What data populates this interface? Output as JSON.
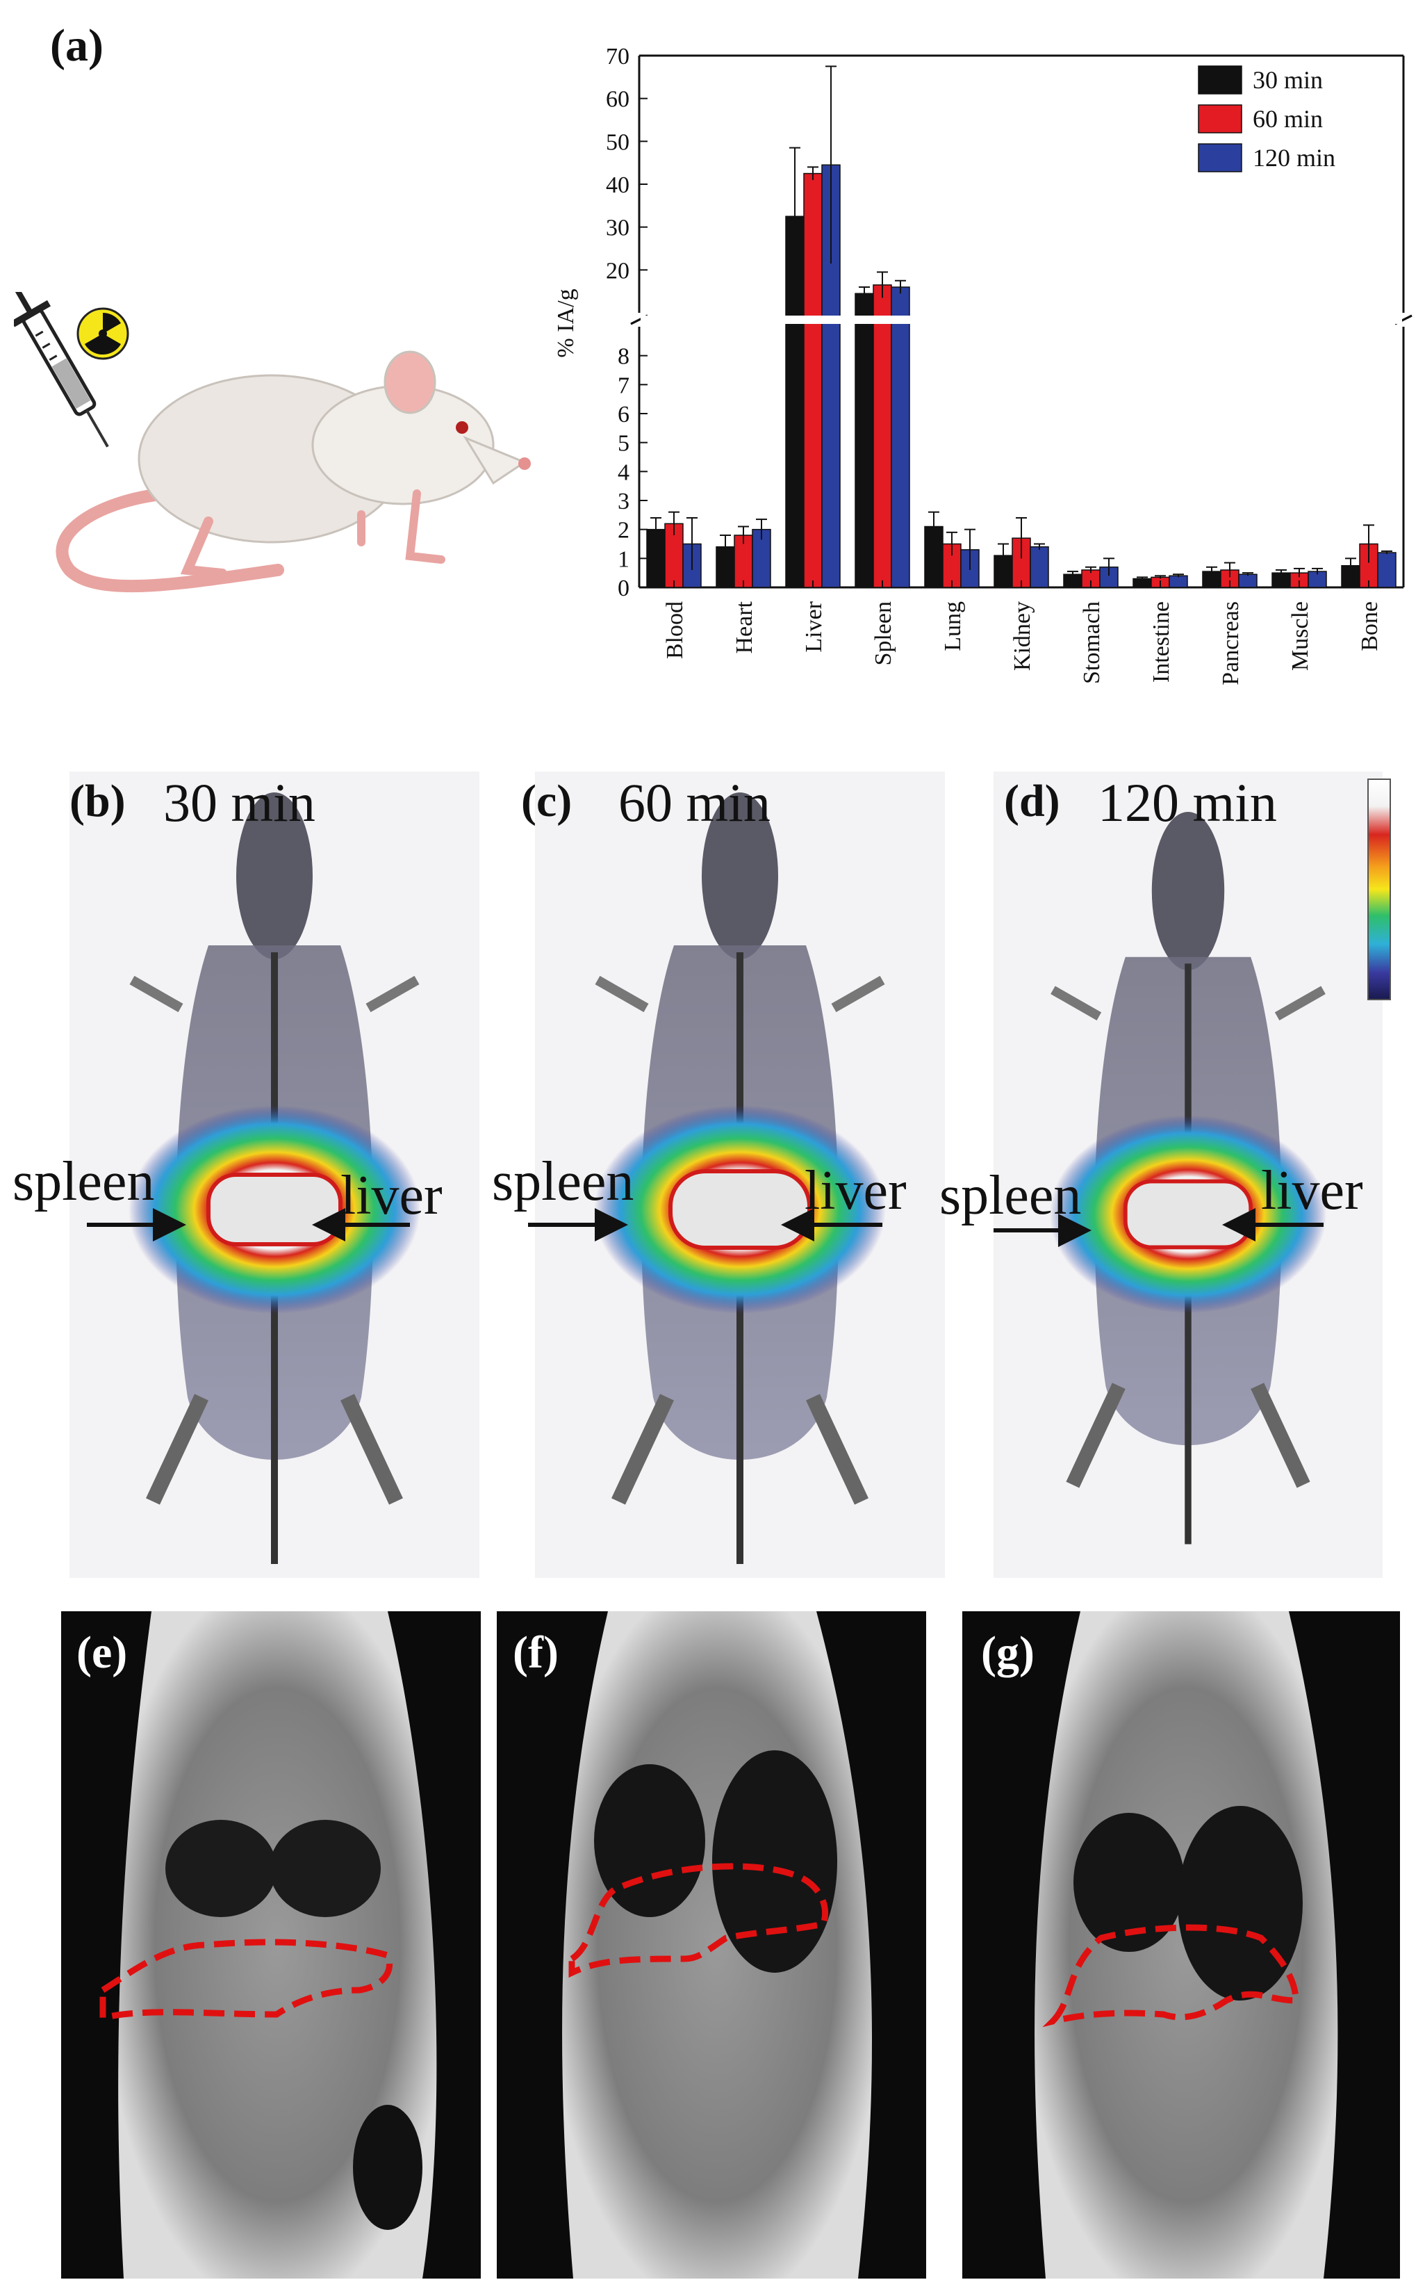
{
  "panels": {
    "a": {
      "label": "(a)"
    },
    "b": {
      "label": "(b)",
      "time": "30 min"
    },
    "c": {
      "label": "(c)",
      "time": "60 min"
    },
    "d": {
      "label": "(d)",
      "time": "120 min"
    },
    "e": {
      "label": "(e)"
    },
    "f": {
      "label": "(f)"
    },
    "g": {
      "label": "(g)"
    }
  },
  "annotations": {
    "spleen": "spleen",
    "liver": "liver"
  },
  "chart_data": {
    "type": "bar",
    "title": "",
    "xlabel": "",
    "ylabel": "% IA/g",
    "categories": [
      "Blood",
      "Heart",
      "Liver",
      "Spleen",
      "Lung",
      "Kidney",
      "Stomach",
      "Intestine",
      "Pancreas",
      "Muscle",
      "Bone"
    ],
    "series": [
      {
        "name": "30 min",
        "color": "#111111",
        "values": [
          2.0,
          1.4,
          32.5,
          14.5,
          2.1,
          1.1,
          0.45,
          0.3,
          0.55,
          0.5,
          0.75
        ],
        "errors": [
          0.4,
          0.4,
          16,
          1.5,
          0.5,
          0.4,
          0.1,
          0.05,
          0.15,
          0.1,
          0.25
        ]
      },
      {
        "name": "60 min",
        "color": "#e31b23",
        "values": [
          2.2,
          1.8,
          42.5,
          16.5,
          1.5,
          1.7,
          0.6,
          0.35,
          0.6,
          0.5,
          1.5
        ],
        "errors": [
          0.4,
          0.3,
          1.5,
          3,
          0.4,
          0.7,
          0.1,
          0.05,
          0.25,
          0.15,
          0.65
        ]
      },
      {
        "name": "120 min",
        "color": "#2b3f9e",
        "values": [
          1.5,
          2.0,
          44.5,
          16,
          1.3,
          1.4,
          0.7,
          0.4,
          0.45,
          0.55,
          1.2
        ],
        "errors": [
          0.9,
          0.35,
          23,
          1.5,
          0.7,
          0.1,
          0.3,
          0.05,
          0.05,
          0.1,
          0.05
        ]
      }
    ],
    "ylim_lower": [
      0,
      9
    ],
    "yticks_lower": [
      0,
      1,
      2,
      3,
      4,
      5,
      6,
      7,
      8
    ],
    "ylim_upper": [
      10,
      70
    ],
    "yticks_upper": [
      20,
      30,
      40,
      50,
      60,
      70
    ],
    "axis_break": true,
    "legend_position": "top-right"
  }
}
